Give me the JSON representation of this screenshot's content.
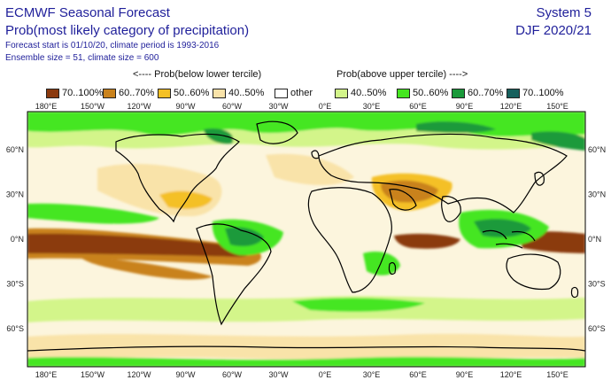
{
  "header": {
    "title": "ECMWF Seasonal Forecast",
    "subtitle": "Prob(most likely category of precipitation)",
    "forecast_info": "Forecast start is 01/10/20, climate period is 1993-2016",
    "ensemble_info": "Ensemble size = 51, climate size = 600",
    "system": "System 5",
    "season": "DJF 2020/21"
  },
  "legend": {
    "below_label": "<---- Prob(below lower tercile)",
    "above_label": "Prob(above upper tercile) ---->",
    "items": [
      {
        "label": "70..100%",
        "color": "#8b3a0f"
      },
      {
        "label": "60..70%",
        "color": "#c9821c"
      },
      {
        "label": "50..60%",
        "color": "#f4c025"
      },
      {
        "label": "40..50%",
        "color": "#f9e3a9"
      },
      {
        "label": "other",
        "color": "#ffffff"
      },
      {
        "label": "40..50%",
        "color": "#d3f58a"
      },
      {
        "label": "50..60%",
        "color": "#45e620"
      },
      {
        "label": "60..70%",
        "color": "#1a9a3a"
      },
      {
        "label": "70..100%",
        "color": "#16605d"
      }
    ]
  },
  "axes": {
    "lon_labels": [
      "180°E",
      "150°W",
      "120°W",
      "90°W",
      "60°W",
      "30°W",
      "0°E",
      "30°E",
      "60°E",
      "90°E",
      "120°E",
      "150°E"
    ],
    "lat_labels": [
      "60°N",
      "30°N",
      "0°N",
      "30°S",
      "60°S"
    ]
  },
  "map_data": {
    "type": "geographic",
    "projection": "equirectangular",
    "lon_range": [
      -180,
      180
    ],
    "lat_range": [
      -90,
      90
    ]
  }
}
